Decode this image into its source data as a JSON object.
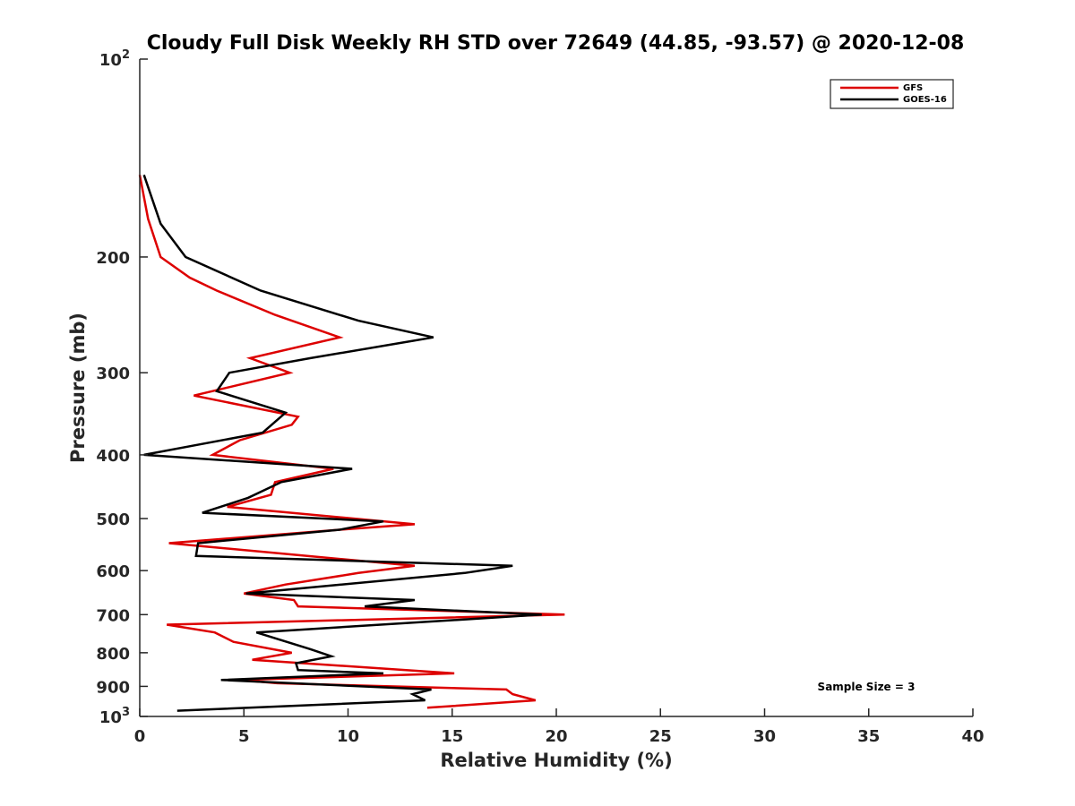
{
  "chart_data": {
    "type": "line",
    "title": "Cloudy Full Disk Weekly RH STD over 72649 (44.85, -93.57) @ 2020-12-08",
    "xlabel": "Relative Humidity (%)",
    "ylabel": "Pressure (mb)",
    "xlim": [
      0,
      40
    ],
    "ylim": [
      100,
      1000
    ],
    "yscale": "log",
    "y_reversed": true,
    "x_ticks": [
      "0",
      "5",
      "10",
      "15",
      "20",
      "25",
      "30",
      "35",
      "40"
    ],
    "y_ticks": [
      {
        "value": 100,
        "base": "10",
        "exp": "2"
      },
      {
        "value": 200,
        "label": "200"
      },
      {
        "value": 300,
        "label": "300"
      },
      {
        "value": 400,
        "label": "400"
      },
      {
        "value": 500,
        "label": "500"
      },
      {
        "value": 600,
        "label": "600"
      },
      {
        "value": 700,
        "label": "700"
      },
      {
        "value": 800,
        "label": "800"
      },
      {
        "value": 900,
        "label": "900"
      },
      {
        "value": 1000,
        "base": "10",
        "exp": "3"
      }
    ],
    "legend_position": "top-right",
    "grid": false,
    "annotation": "Sample Size = 3",
    "series": [
      {
        "name": "GFS",
        "color": "#dd0000",
        "points": [
          [
            0.0,
            150
          ],
          [
            0.4,
            175
          ],
          [
            1.0,
            200
          ],
          [
            2.4,
            215
          ],
          [
            3.7,
            225
          ],
          [
            6.5,
            245
          ],
          [
            9.6,
            265
          ],
          [
            5.3,
            285
          ],
          [
            7.2,
            300
          ],
          [
            2.6,
            325
          ],
          [
            7.6,
            350
          ],
          [
            7.3,
            360
          ],
          [
            4.8,
            380
          ],
          [
            3.5,
            400
          ],
          [
            9.3,
            420
          ],
          [
            6.5,
            440
          ],
          [
            6.3,
            460
          ],
          [
            4.2,
            480
          ],
          [
            13.2,
            510
          ],
          [
            9.6,
            520
          ],
          [
            1.4,
            545
          ],
          [
            13.2,
            590
          ],
          [
            10.5,
            605
          ],
          [
            7.0,
            630
          ],
          [
            5.0,
            650
          ],
          [
            7.4,
            665
          ],
          [
            7.6,
            680
          ],
          [
            20.4,
            700
          ],
          [
            1.3,
            725
          ],
          [
            3.6,
            745
          ],
          [
            4.5,
            770
          ],
          [
            7.3,
            800
          ],
          [
            5.4,
            820
          ],
          [
            15.1,
            860
          ],
          [
            4.8,
            880
          ],
          [
            6.6,
            890
          ],
          [
            17.6,
            910
          ],
          [
            17.9,
            925
          ],
          [
            19.0,
            945
          ],
          [
            13.8,
            970
          ]
        ]
      },
      {
        "name": "GOES-16",
        "color": "#000000",
        "points": [
          [
            0.2,
            150
          ],
          [
            1.0,
            178
          ],
          [
            2.2,
            200
          ],
          [
            5.8,
            225
          ],
          [
            10.5,
            250
          ],
          [
            14.1,
            265
          ],
          [
            8.2,
            285
          ],
          [
            4.3,
            300
          ],
          [
            3.7,
            320
          ],
          [
            7.0,
            345
          ],
          [
            5.9,
            370
          ],
          [
            3.0,
            385
          ],
          [
            0.2,
            400
          ],
          [
            10.2,
            420
          ],
          [
            6.8,
            440
          ],
          [
            5.2,
            465
          ],
          [
            3.0,
            490
          ],
          [
            11.7,
            505
          ],
          [
            9.6,
            520
          ],
          [
            2.8,
            545
          ],
          [
            2.7,
            570
          ],
          [
            17.9,
            590
          ],
          [
            15.6,
            605
          ],
          [
            5.1,
            650
          ],
          [
            13.2,
            665
          ],
          [
            10.8,
            680
          ],
          [
            19.3,
            700
          ],
          [
            5.6,
            745
          ],
          [
            8.2,
            790
          ],
          [
            9.2,
            810
          ],
          [
            7.5,
            830
          ],
          [
            7.6,
            850
          ],
          [
            11.7,
            860
          ],
          [
            3.9,
            880
          ],
          [
            14.0,
            910
          ],
          [
            13.1,
            925
          ],
          [
            13.7,
            945
          ],
          [
            1.8,
            980
          ]
        ]
      }
    ]
  }
}
